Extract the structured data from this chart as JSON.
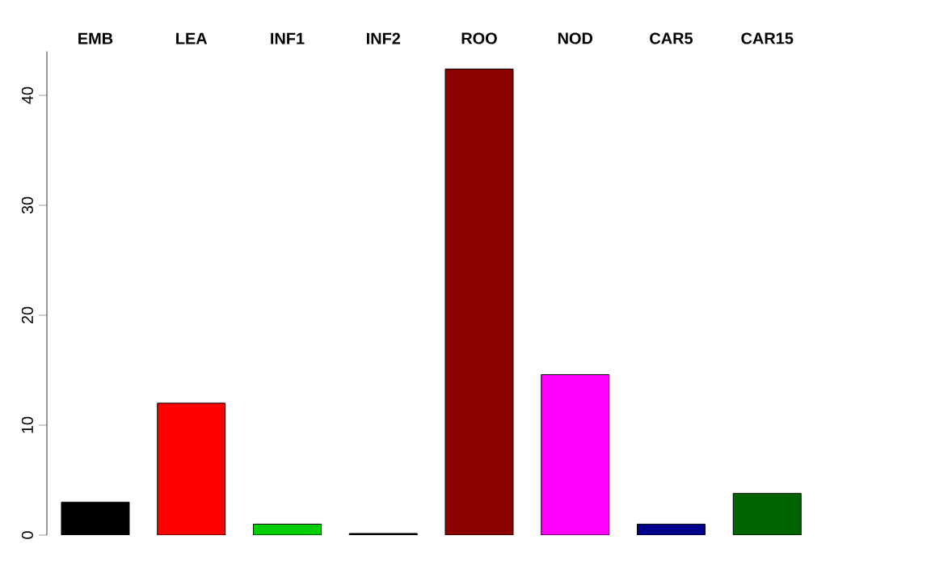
{
  "chart_data": {
    "type": "bar",
    "categories": [
      "EMB",
      "LEA",
      "INF1",
      "INF2",
      "ROO",
      "NOD",
      "CAR5",
      "CAR15"
    ],
    "values": [
      3.0,
      12.0,
      1.0,
      0.15,
      42.4,
      14.6,
      1.0,
      3.8
    ],
    "colors": [
      "#000000",
      "#ff0000",
      "#00cd00",
      "#000000",
      "#8b0000",
      "#ff00ff",
      "#00008b",
      "#006400"
    ],
    "ylim": [
      0,
      44
    ],
    "yticks": [
      0,
      10,
      20,
      30,
      40
    ]
  }
}
